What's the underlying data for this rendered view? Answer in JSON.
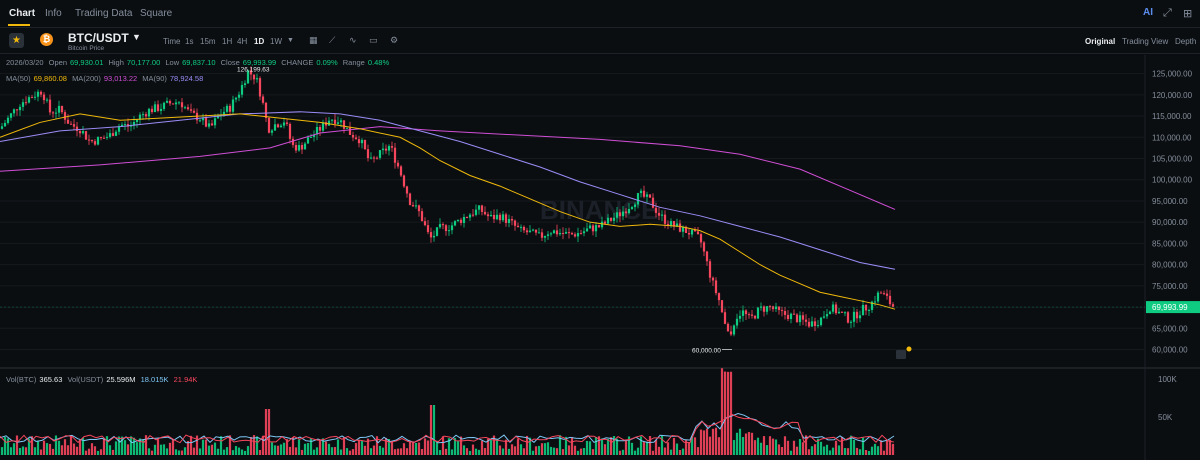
{
  "tabs": [
    {
      "label": "Chart",
      "active": true
    },
    {
      "label": "Info",
      "active": false
    },
    {
      "label": "Trading Data",
      "active": false
    },
    {
      "label": "Square",
      "active": false
    }
  ],
  "top_icons": {
    "ai": "AI",
    "ai_icon": "ai-icon",
    "expand_icon": "expand-icon",
    "grid_icon": "grid-icon"
  },
  "pair": {
    "name": "BTC/USDT",
    "subtitle": "Bitcoin Price",
    "coin_symbol": "₿"
  },
  "intervals": [
    {
      "label": "Time",
      "active": false
    },
    {
      "label": "1s",
      "active": false
    },
    {
      "label": "15m",
      "active": false
    },
    {
      "label": "1H",
      "active": false
    },
    {
      "label": "4H",
      "active": false
    },
    {
      "label": "1D",
      "active": true
    },
    {
      "label": "1W",
      "active": false
    }
  ],
  "view_tabs": [
    {
      "label": "Original",
      "active": true
    },
    {
      "label": "Trading View",
      "active": false
    },
    {
      "label": "Depth",
      "active": false
    }
  ],
  "ohlc": {
    "date": "2026/03/20",
    "open_label": "Open",
    "open": "69,930.01",
    "high_label": "High",
    "high": "70,177.00",
    "low_label": "Low",
    "low": "69,837.10",
    "close_label": "Close",
    "close": "69,993.99",
    "change_label": "CHANGE",
    "change": "0.09%",
    "range_label": "Range",
    "range": "0.48%"
  },
  "ma": {
    "ma50_label": "MA(50)",
    "ma50": "69,860.08",
    "ma200_label": "MA(200)",
    "ma200": "93,013.22",
    "ma90_label": "MA(90)",
    "ma90": "78,924.58"
  },
  "vol": {
    "btc_label": "Vol(BTC)",
    "btc": "365.63",
    "usdt_label": "Vol(USDT)",
    "usdt": "25.596M",
    "v1": "18.015K",
    "v2": "21.94K"
  },
  "colors": {
    "up": "#0ecb81",
    "down": "#f6465d",
    "ma50": "#f0b90b",
    "ma90": "#9b8cf7",
    "ma200": "#d04ed6",
    "accent": "#f0b90b"
  },
  "chart_data": {
    "type": "candlestick",
    "price_axis_ticks": [
      "125,000.00",
      "120,000.00",
      "115,000.00",
      "110,000.00",
      "105,000.00",
      "100,000.00",
      "95,000.00",
      "90,000.00",
      "85,000.00",
      "80,000.00",
      "75,000.00",
      "70,000.00",
      "65,000.00",
      "60,000.00"
    ],
    "price_ylim": [
      58000,
      127500
    ],
    "volume_axis_ticks": [
      "100K",
      "50K"
    ],
    "last_price": "69,993.99",
    "high_annotation": "126,199.63",
    "low_annotation": "60,000.00",
    "watermark": "BINANCE",
    "price_path": [
      [
        0,
        112000
      ],
      [
        10,
        115000
      ],
      [
        20,
        118000
      ],
      [
        30,
        119500
      ],
      [
        42,
        121000
      ],
      [
        50,
        116000
      ],
      [
        60,
        116500
      ],
      [
        70,
        113000
      ],
      [
        80,
        112000
      ],
      [
        90,
        109000
      ],
      [
        100,
        109500
      ],
      [
        110,
        110500
      ],
      [
        120,
        113000
      ],
      [
        130,
        112500
      ],
      [
        140,
        115000
      ],
      [
        150,
        116500
      ],
      [
        160,
        117000
      ],
      [
        170,
        118000
      ],
      [
        180,
        118500
      ],
      [
        190,
        115500
      ],
      [
        200,
        114500
      ],
      [
        210,
        112000
      ],
      [
        220,
        115500
      ],
      [
        230,
        117000
      ],
      [
        240,
        121000
      ],
      [
        248,
        125500
      ],
      [
        256,
        124000
      ],
      [
        262,
        119000
      ],
      [
        268,
        112000
      ],
      [
        275,
        113000
      ],
      [
        285,
        114000
      ],
      [
        292,
        108000
      ],
      [
        300,
        107500
      ],
      [
        310,
        110000
      ],
      [
        320,
        112000
      ],
      [
        330,
        114500
      ],
      [
        340,
        114000
      ],
      [
        350,
        111000
      ],
      [
        360,
        109500
      ],
      [
        370,
        104000
      ],
      [
        380,
        106000
      ],
      [
        390,
        108000
      ],
      [
        400,
        102000
      ],
      [
        410,
        95000
      ],
      [
        420,
        92000
      ],
      [
        430,
        86000
      ],
      [
        440,
        88500
      ],
      [
        450,
        89000
      ],
      [
        460,
        90500
      ],
      [
        470,
        92000
      ],
      [
        480,
        93000
      ],
      [
        490,
        91000
      ],
      [
        500,
        91500
      ],
      [
        510,
        90000
      ],
      [
        520,
        88000
      ],
      [
        530,
        87500
      ],
      [
        540,
        86500
      ],
      [
        550,
        88000
      ],
      [
        560,
        87500
      ],
      [
        570,
        87000
      ],
      [
        580,
        87500
      ],
      [
        590,
        88500
      ],
      [
        600,
        89000
      ],
      [
        610,
        90500
      ],
      [
        620,
        92000
      ],
      [
        630,
        94000
      ],
      [
        640,
        96500
      ],
      [
        650,
        95000
      ],
      [
        660,
        91500
      ],
      [
        670,
        89500
      ],
      [
        680,
        88500
      ],
      [
        690,
        87500
      ],
      [
        700,
        86000
      ],
      [
        705,
        82000
      ],
      [
        712,
        76000
      ],
      [
        720,
        71000
      ],
      [
        726,
        64500
      ],
      [
        730,
        62500
      ],
      [
        735,
        67500
      ],
      [
        742,
        69000
      ],
      [
        750,
        67000
      ],
      [
        760,
        69500
      ],
      [
        770,
        70000
      ],
      [
        780,
        68500
      ],
      [
        790,
        68000
      ],
      [
        800,
        67000
      ],
      [
        810,
        66000
      ],
      [
        820,
        67000
      ],
      [
        830,
        70000
      ],
      [
        840,
        68500
      ],
      [
        850,
        67000
      ],
      [
        860,
        69000
      ],
      [
        870,
        70500
      ],
      [
        880,
        73500
      ],
      [
        885,
        72500
      ],
      [
        890,
        71000
      ],
      [
        894,
        70000
      ]
    ],
    "ma50_path": [
      [
        0,
        110000
      ],
      [
        40,
        113500
      ],
      [
        80,
        115500
      ],
      [
        120,
        114000
      ],
      [
        160,
        114500
      ],
      [
        200,
        115000
      ],
      [
        240,
        115500
      ],
      [
        280,
        114500
      ],
      [
        320,
        113500
      ],
      [
        360,
        112000
      ],
      [
        400,
        110000
      ],
      [
        420,
        107500
      ],
      [
        440,
        104500
      ],
      [
        470,
        101000
      ],
      [
        500,
        98500
      ],
      [
        530,
        95500
      ],
      [
        560,
        92500
      ],
      [
        590,
        90000
      ],
      [
        620,
        89000
      ],
      [
        650,
        89500
      ],
      [
        680,
        89000
      ],
      [
        700,
        88000
      ],
      [
        720,
        86000
      ],
      [
        740,
        83000
      ],
      [
        760,
        80000
      ],
      [
        780,
        77500
      ],
      [
        800,
        75500
      ],
      [
        820,
        73500
      ],
      [
        840,
        72500
      ],
      [
        860,
        71500
      ],
      [
        880,
        70500
      ],
      [
        895,
        69500
      ]
    ],
    "ma90_path": [
      [
        0,
        109000
      ],
      [
        60,
        111500
      ],
      [
        120,
        112500
      ],
      [
        180,
        114000
      ],
      [
        240,
        115500
      ],
      [
        300,
        116000
      ],
      [
        340,
        115500
      ],
      [
        380,
        114000
      ],
      [
        420,
        111500
      ],
      [
        460,
        109000
      ],
      [
        500,
        106000
      ],
      [
        540,
        103000
      ],
      [
        580,
        99500
      ],
      [
        620,
        96500
      ],
      [
        660,
        93500
      ],
      [
        700,
        91500
      ],
      [
        740,
        89000
      ],
      [
        780,
        86500
      ],
      [
        820,
        83500
      ],
      [
        860,
        80500
      ],
      [
        895,
        78900
      ]
    ],
    "ma200_path": [
      [
        0,
        102000
      ],
      [
        100,
        103500
      ],
      [
        200,
        105500
      ],
      [
        270,
        107500
      ],
      [
        320,
        111000
      ],
      [
        380,
        112500
      ],
      [
        440,
        111500
      ],
      [
        520,
        110500
      ],
      [
        600,
        109500
      ],
      [
        680,
        108000
      ],
      [
        740,
        106000
      ],
      [
        800,
        102500
      ],
      [
        850,
        97500
      ],
      [
        895,
        93000
      ]
    ]
  }
}
